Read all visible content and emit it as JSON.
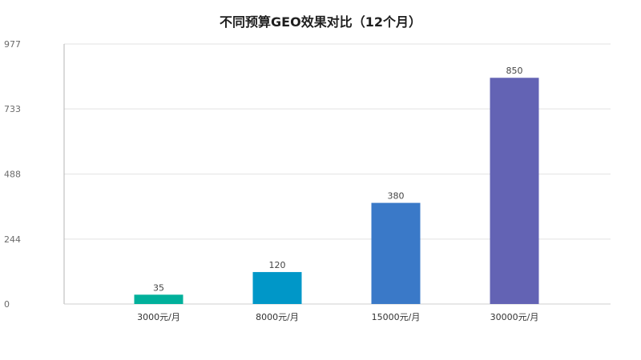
{
  "chart_data": {
    "type": "bar",
    "title": "不同预算GEO效果对比（12个月）",
    "xlabel": "",
    "ylabel": "",
    "categories": [
      "3000元/月",
      "8000元/月",
      "15000元/月",
      "30000元/月"
    ],
    "values": [
      35,
      120,
      380,
      850
    ],
    "ylim": [
      0,
      977
    ],
    "yticks": [
      0,
      244,
      488,
      733,
      977
    ],
    "bar_colors": [
      "#00b09b",
      "#0097c8",
      "#3a79c8",
      "#6363b4"
    ],
    "grid": true,
    "legend": "none"
  }
}
